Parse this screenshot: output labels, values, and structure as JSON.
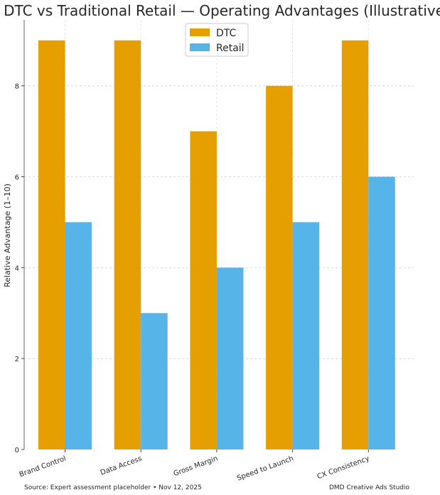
{
  "chart_data": {
    "type": "bar",
    "title": "DTC vs Traditional Retail — Operating Advantages (Illustrative)",
    "xlabel": "",
    "ylabel": "Relative Advantage (1–10)",
    "categories": [
      "Brand Control",
      "Data Access",
      "Gross Margin",
      "Speed to Launch",
      "CX Consistency"
    ],
    "series": [
      {
        "name": "DTC",
        "values": [
          9,
          9,
          7,
          8,
          9
        ],
        "color": "#E69F00"
      },
      {
        "name": "Retail",
        "values": [
          5,
          3,
          4,
          5,
          6
        ],
        "color": "#56B4E9"
      }
    ],
    "ylim": [
      0,
      9.45
    ],
    "yticks": [
      0,
      2,
      4,
      6,
      8
    ],
    "grid": true,
    "legend_position": "top-center",
    "footer_left": "Source: Expert assessment placeholder • Nov 12, 2025",
    "footer_right": "DMD Creative Ads Studio"
  }
}
